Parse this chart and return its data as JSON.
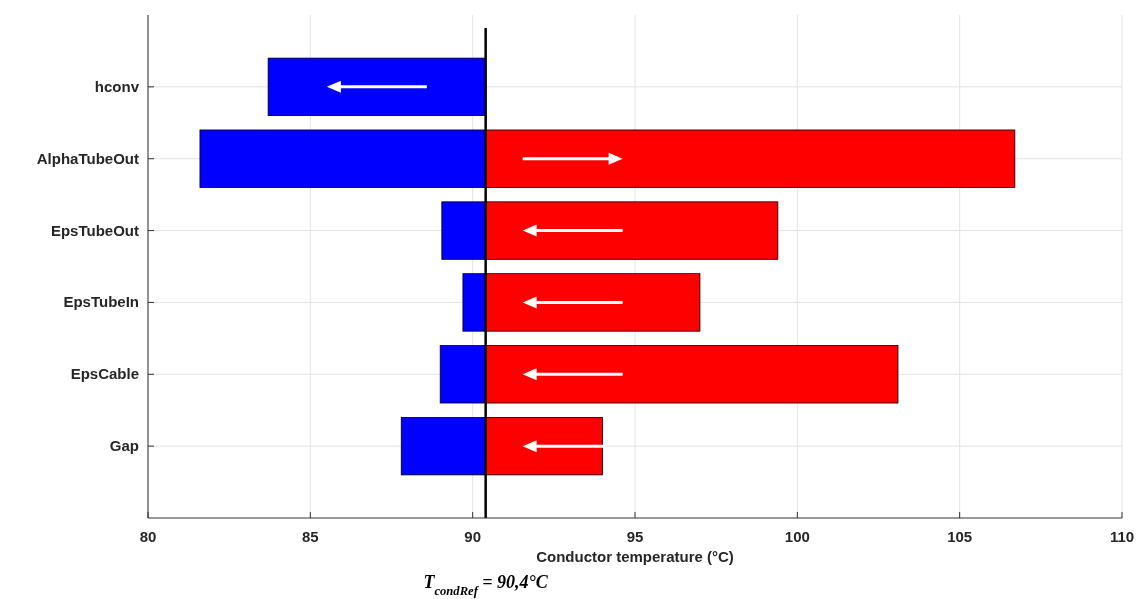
{
  "chart_data": {
    "type": "bar",
    "orientation": "horizontal",
    "xlabel": "Conductor temperature (°C)",
    "categories": [
      "hconv",
      "AlphaTubeOut",
      "EpsTubeOut",
      "EpsTubeIn",
      "EpsCable",
      "Gap"
    ],
    "series": [
      {
        "color": "#0000ff",
        "base": [
          83.7,
          81.6,
          89.05,
          89.7,
          89.0,
          87.8
        ],
        "values": [
          6.7,
          8.8,
          1.35,
          0.7,
          1.4,
          2.6
        ]
      },
      {
        "color": "#ff0000",
        "base": [
          null,
          90.4,
          90.4,
          90.4,
          90.4,
          90.4
        ],
        "values": [
          null,
          16.3,
          9.0,
          6.6,
          12.7,
          3.6
        ]
      }
    ],
    "xlim": [
      80,
      110
    ],
    "xticks": [
      80,
      85,
      90,
      95,
      100,
      105,
      110
    ],
    "grid": true,
    "ref_lines": [
      {
        "axis": "x",
        "value": 90.4,
        "label": "T$_{condRef}$ = 90,4°C",
        "color": "#000000"
      }
    ]
  }
}
